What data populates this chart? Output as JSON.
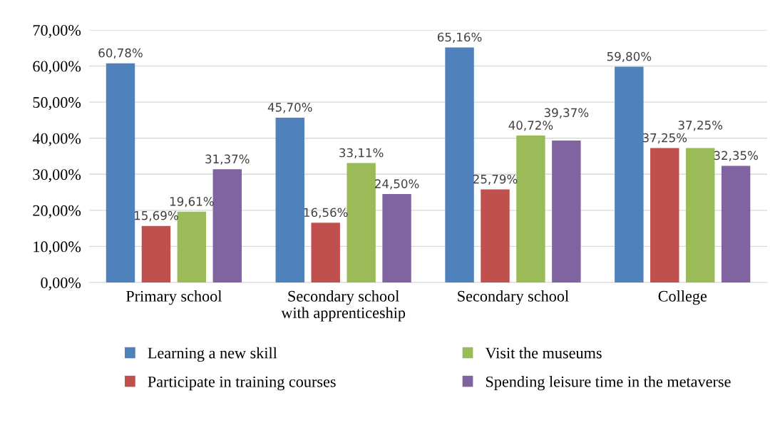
{
  "chart_data": {
    "type": "bar",
    "categories": [
      "Primary school",
      "Secondary school\nwith apprenticeship",
      "Secondary school",
      "College"
    ],
    "series": [
      {
        "name": "Learning a new skill",
        "color": "#4f81bd",
        "values": [
          60.78,
          45.7,
          65.16,
          59.8
        ],
        "value_labels": [
          "60,78%",
          "45,70%",
          "65,16%",
          "59,80%"
        ]
      },
      {
        "name": "Participate in training courses",
        "color": "#c0504d",
        "values": [
          15.69,
          16.56,
          25.79,
          37.25
        ],
        "value_labels": [
          "15,69%",
          "16,56%",
          "25,79%",
          "37,25%"
        ]
      },
      {
        "name": "Visit the museums",
        "color": "#9bbb59",
        "values": [
          19.61,
          33.11,
          40.72,
          37.25
        ],
        "value_labels": [
          "19,61%",
          "33,11%",
          "40,72%",
          "37,25%"
        ]
      },
      {
        "name": "Spending leisure time in the metaverse",
        "color": "#8064a2",
        "values": [
          31.37,
          24.5,
          39.37,
          32.35
        ],
        "value_labels": [
          "31,37%",
          "24,50%",
          "39,37%",
          "32,35%"
        ]
      }
    ],
    "ylim": [
      0,
      70
    ],
    "yticks": [
      {
        "value": 0,
        "label": "0,00%"
      },
      {
        "value": 10,
        "label": "10,00%"
      },
      {
        "value": 20,
        "label": "20,00%"
      },
      {
        "value": 30,
        "label": "30,00%"
      },
      {
        "value": 40,
        "label": "40,00%"
      },
      {
        "value": 50,
        "label": "50,00%"
      },
      {
        "value": 60,
        "label": "60,00%"
      },
      {
        "value": 70,
        "label": "70,00%"
      }
    ],
    "grid": "y",
    "legend": "bottom"
  }
}
